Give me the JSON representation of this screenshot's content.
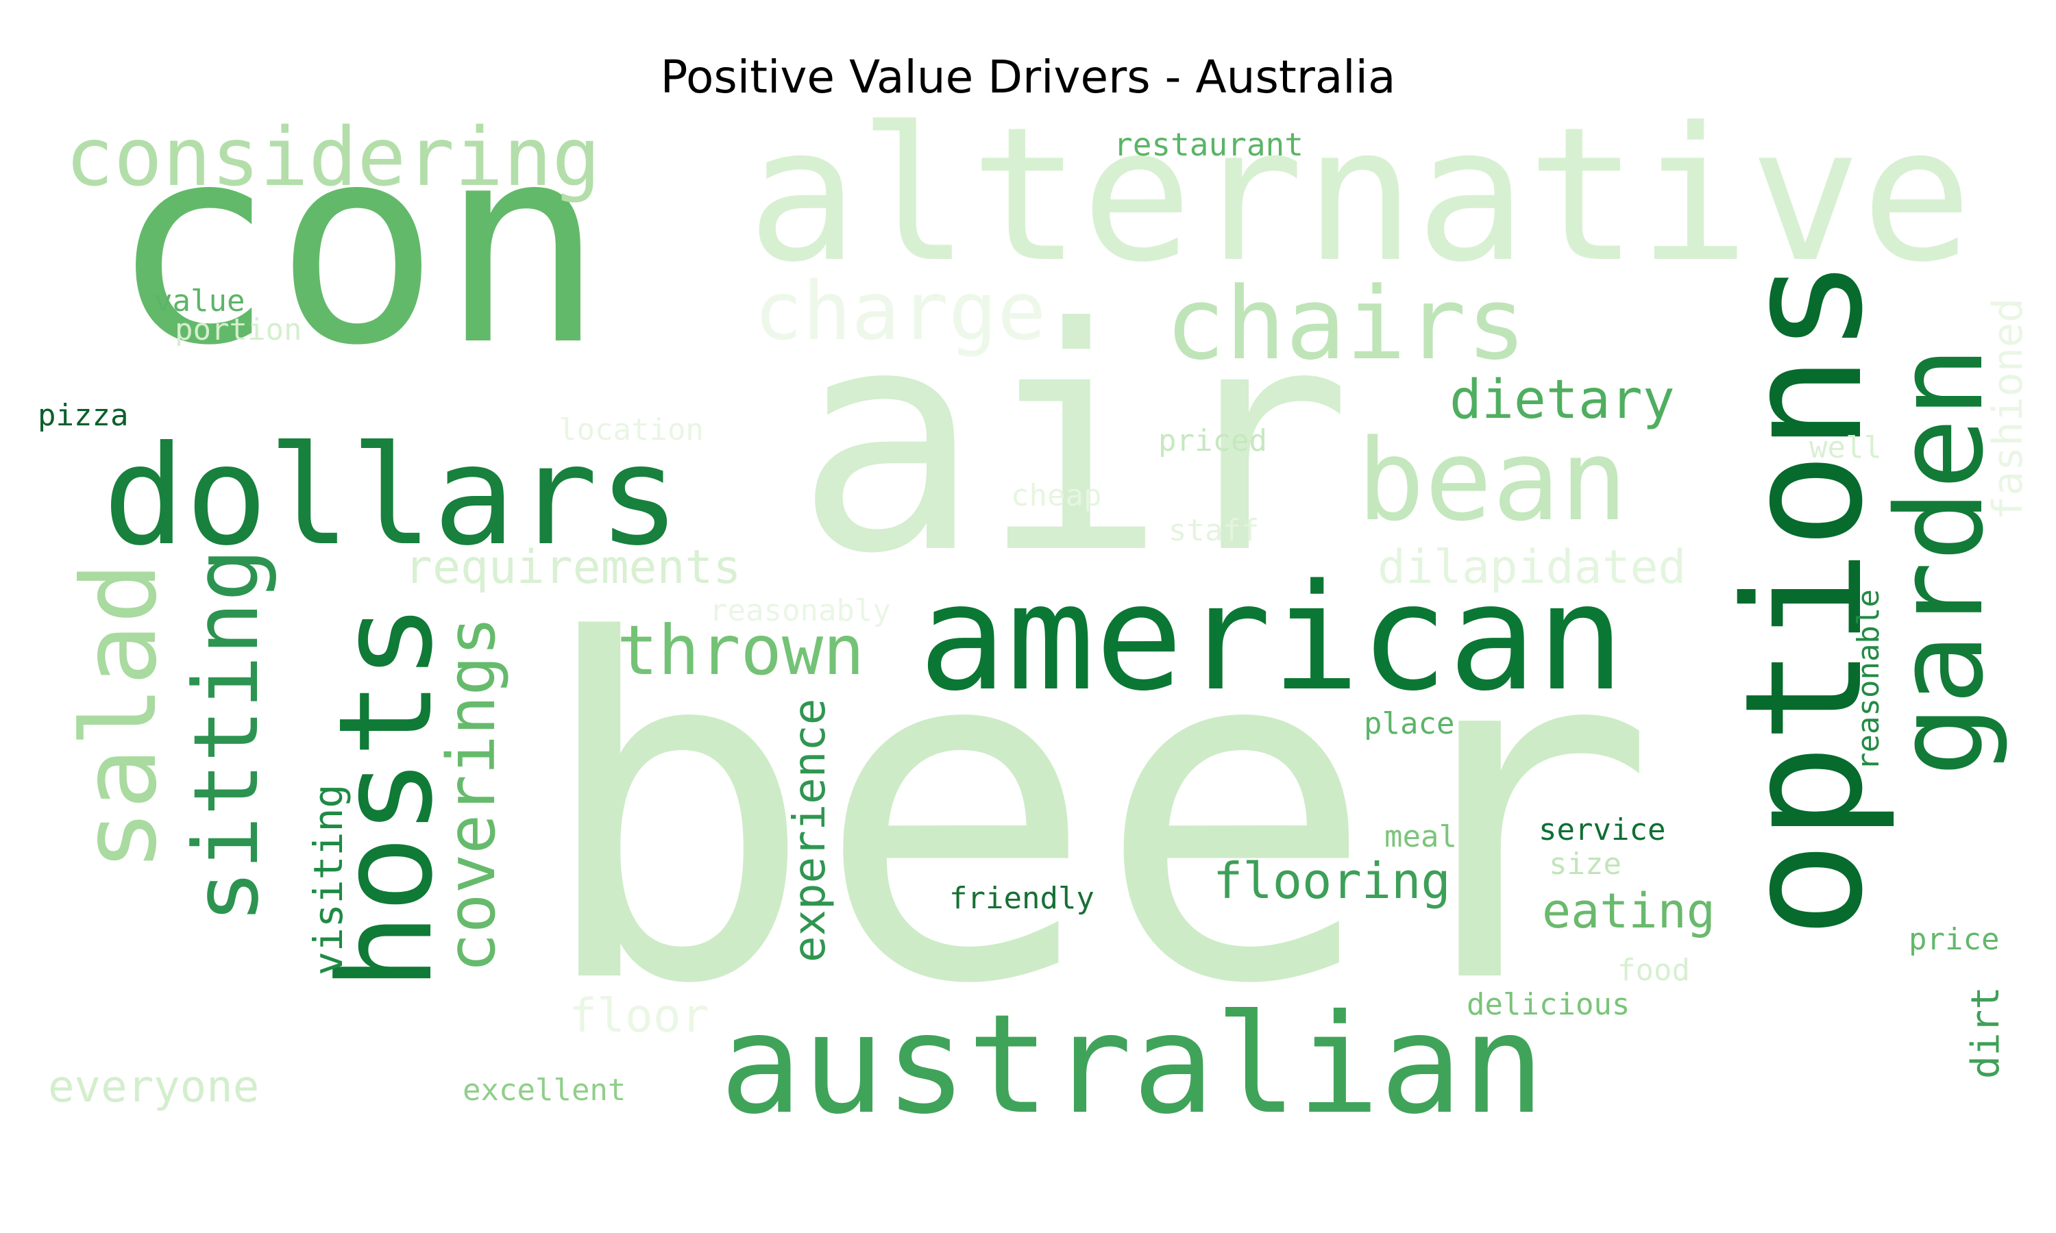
{
  "title": "Positive Value Drivers - Australia",
  "words": [
    {
      "text": "beer",
      "color": "#cdebc7"
    },
    {
      "text": "air",
      "color": "#d4eecf"
    },
    {
      "text": "con",
      "color": "#63b96a"
    },
    {
      "text": "alternative",
      "color": "#d8f0d2"
    },
    {
      "text": "options",
      "color": "#066b2d"
    },
    {
      "text": "american",
      "color": "#0b7734"
    },
    {
      "text": "australian",
      "color": "#40a35a"
    },
    {
      "text": "dollars",
      "color": "#17813d"
    },
    {
      "text": "hosts",
      "color": "#107a37"
    },
    {
      "text": "garden",
      "color": "#127b38"
    },
    {
      "text": "bean",
      "color": "#c4e7bd"
    },
    {
      "text": "chairs",
      "color": "#bfe4b8"
    },
    {
      "text": "considering",
      "color": "#b3deaa"
    },
    {
      "text": "charge",
      "color": "#eef8ea"
    },
    {
      "text": "salad",
      "color": "#a9da9f"
    },
    {
      "text": "sitting",
      "color": "#2c9450"
    },
    {
      "text": "coverings",
      "color": "#66ba6c"
    },
    {
      "text": "thrown",
      "color": "#74c276"
    },
    {
      "text": "dietary",
      "color": "#4fae5f"
    },
    {
      "text": "flooring",
      "color": "#3d9f58"
    },
    {
      "text": "eating",
      "color": "#6ab96d"
    },
    {
      "text": "requirements",
      "color": "#d9f0d3"
    },
    {
      "text": "dilapidated",
      "color": "#e4f5df"
    },
    {
      "text": "everyone",
      "color": "#d3eecd"
    },
    {
      "text": "floor",
      "color": "#eaf7e5"
    },
    {
      "text": "experience",
      "color": "#2f9651"
    },
    {
      "text": "visiting",
      "color": "#1f8a44"
    },
    {
      "text": "fashioned",
      "color": "#eaf6e5"
    },
    {
      "text": "reasonable",
      "color": "#238b45"
    },
    {
      "text": "dirt",
      "color": "#3ea057"
    },
    {
      "text": "restaurant",
      "color": "#5bb467"
    },
    {
      "text": "value",
      "color": "#5cb468"
    },
    {
      "text": "portion",
      "color": "#d5efcf"
    },
    {
      "text": "pizza",
      "color": "#0b5f2c"
    },
    {
      "text": "location",
      "color": "#e8f6e3"
    },
    {
      "text": "priced",
      "color": "#c6e8bf"
    },
    {
      "text": "cheap",
      "color": "#e6f5e1"
    },
    {
      "text": "staff",
      "color": "#e4f4de"
    },
    {
      "text": "well",
      "color": "#d9f0d3"
    },
    {
      "text": "reasonably",
      "color": "#eaf6e5"
    },
    {
      "text": "place",
      "color": "#5cb468"
    },
    {
      "text": "meal",
      "color": "#7cc57c"
    },
    {
      "text": "service",
      "color": "#0f6e34"
    },
    {
      "text": "size",
      "color": "#c1e5ba"
    },
    {
      "text": "friendly",
      "color": "#176f35"
    },
    {
      "text": "price",
      "color": "#62b86a"
    },
    {
      "text": "food",
      "color": "#d8efd2"
    },
    {
      "text": "delicious",
      "color": "#7ac47a"
    },
    {
      "text": "excellent",
      "color": "#8fcf89"
    }
  ]
}
